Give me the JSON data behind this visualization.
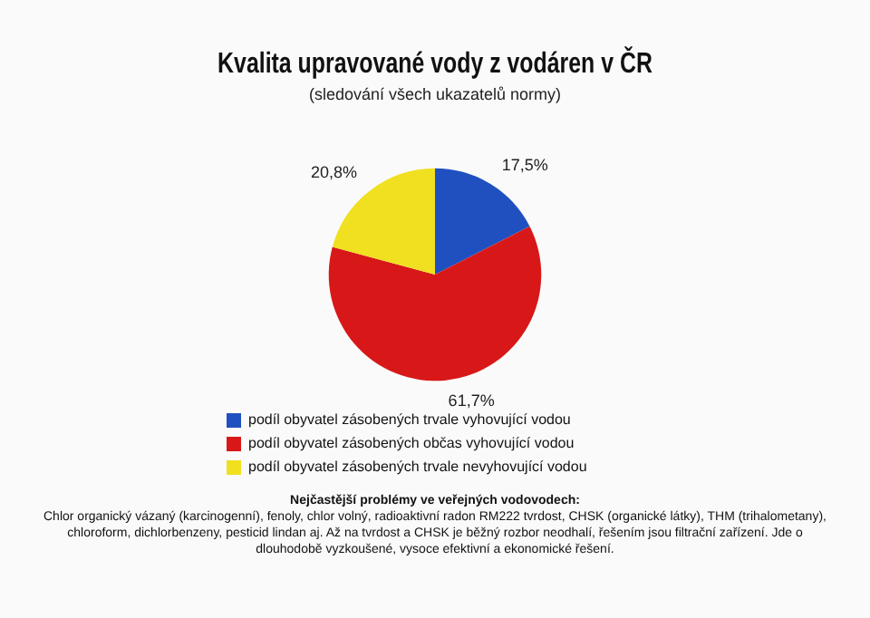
{
  "chart_data": {
    "type": "pie",
    "title": "Kvalita upravované vody z vodáren v ČR",
    "subtitle": "(sledování všech ukazatelů normy)",
    "categories": [
      "podíl obyvatel zásobených trvale vyhovující vodou",
      "podíl obyvatel zásobených občas vyhovující vodou",
      "podíl obyvatel zásobených trvale nevyhovující vodou"
    ],
    "values": [
      17.5,
      61.7,
      20.8
    ],
    "colors": [
      "#2050c0",
      "#d81818",
      "#f0e020"
    ],
    "value_labels": [
      "17,5%",
      "61,7%",
      "20,8%"
    ],
    "legend": "bottom",
    "annotations": [
      "Nejčastější problémy ve veřejných vodovodech:",
      "Chlor organický vázaný (karcinogenní), fenoly, chlor volný, radioaktivní radon RM222 tvrdost, CHSK (organické látky), THM (trihalometany), chloroform, dichlorbenzeny, pesticid lindan aj. Až na tvrdost a CHSK je běžný rozbor neodhalí, řešením jsou filtrační zařízení. Jde o dlouhodobě vyzkoušené, vysoce efektivní a ekonomické řešení."
    ]
  }
}
